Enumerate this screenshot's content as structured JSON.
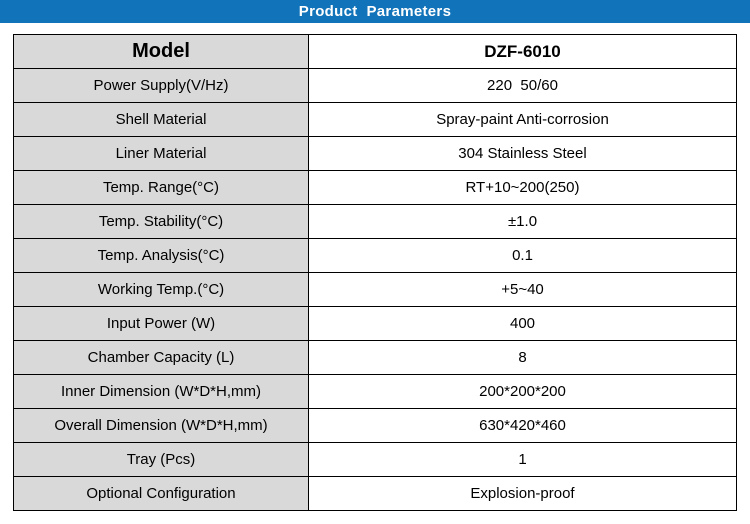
{
  "header": {
    "title": "Product  Parameters",
    "bg_color": "#1173b9",
    "text_color": "#ffffff"
  },
  "table": {
    "header_row": {
      "label": "Model",
      "value": "DZF-6010"
    },
    "rows": [
      {
        "label": "Power Supply(V/Hz)",
        "value": "220  50/60"
      },
      {
        "label": "Shell Material",
        "value": "Spray-paint Anti-corrosion"
      },
      {
        "label": "Liner Material",
        "value": "304 Stainless Steel"
      },
      {
        "label": "Temp. Range(°C)",
        "value": "RT+10~200(250)"
      },
      {
        "label": "Temp. Stability(°C)",
        "value": "±1.0"
      },
      {
        "label": "Temp. Analysis(°C)",
        "value": "0.1"
      },
      {
        "label": "Working Temp.(°C)",
        "value": "+5~40"
      },
      {
        "label": "Input Power (W)",
        "value": "400"
      },
      {
        "label": "Chamber Capacity (L)",
        "value": "8"
      },
      {
        "label": "Inner Dimension (W*D*H,mm)",
        "value": "200*200*200"
      },
      {
        "label": "Overall Dimension (W*D*H,mm)",
        "value": "630*420*460"
      },
      {
        "label": "Tray (Pcs)",
        "value": "1"
      },
      {
        "label": "Optional Configuration",
        "value": "Explosion-proof"
      }
    ],
    "label_bg_color": "#d9d9d9",
    "value_bg_color": "#ffffff",
    "border_color": "#000000"
  }
}
